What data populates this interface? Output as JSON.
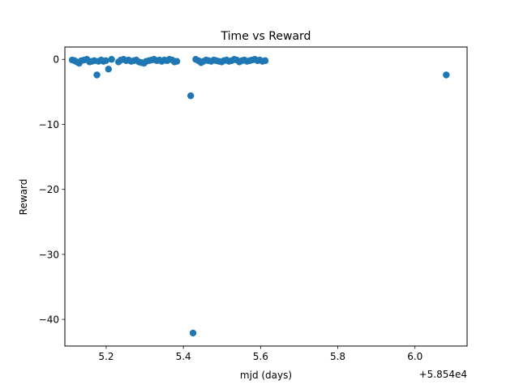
{
  "chart_data": {
    "type": "scatter",
    "title": "Time vs Reward",
    "xlabel": "mjd (days)",
    "ylabel": "Reward",
    "x_offset_label": "+5.854e4",
    "xlim": [
      5.093,
      6.135
    ],
    "ylim": [
      -44.1,
      1.9
    ],
    "x_ticks": [
      {
        "value": 5.2,
        "label": "5.2"
      },
      {
        "value": 5.4,
        "label": "5.4"
      },
      {
        "value": 5.6,
        "label": "5.6"
      },
      {
        "value": 5.8,
        "label": "5.8"
      },
      {
        "value": 6.0,
        "label": "6.0"
      }
    ],
    "y_ticks": [
      {
        "value": 0,
        "label": "0"
      },
      {
        "value": -10,
        "label": "−10"
      },
      {
        "value": -20,
        "label": "−20"
      },
      {
        "value": -30,
        "label": "−30"
      },
      {
        "value": -40,
        "label": "−40"
      }
    ],
    "grid": false,
    "marker_color": "#1f77b4",
    "series": [
      {
        "x": [
          5.112,
          5.118,
          5.124,
          5.13,
          5.136,
          5.143,
          5.15,
          5.157,
          5.163,
          5.169,
          5.176,
          5.18,
          5.187,
          5.193,
          5.199,
          5.206,
          5.214,
          5.232,
          5.238,
          5.245,
          5.252,
          5.258,
          5.265,
          5.272,
          5.278,
          5.285,
          5.291,
          5.298,
          5.304,
          5.311,
          5.318,
          5.324,
          5.331,
          5.338,
          5.344,
          5.351,
          5.358,
          5.364,
          5.371,
          5.377,
          5.383,
          5.419,
          5.425,
          5.432,
          5.439,
          5.446,
          5.452,
          5.459,
          5.465,
          5.472,
          5.479,
          5.485,
          5.492,
          5.499,
          5.505,
          5.512,
          5.518,
          5.525,
          5.532,
          5.538,
          5.545,
          5.552,
          5.558,
          5.565,
          5.572,
          5.578,
          5.585,
          5.592,
          5.598,
          5.605,
          5.612,
          6.081
        ],
        "y": [
          -0.1,
          -0.2,
          -0.4,
          -0.6,
          -0.2,
          -0.1,
          0.0,
          -0.4,
          -0.3,
          -0.2,
          -2.4,
          -0.3,
          -0.1,
          -0.3,
          -0.2,
          -1.5,
          0.0,
          -0.4,
          -0.1,
          0.0,
          -0.2,
          -0.1,
          -0.3,
          -0.2,
          -0.1,
          -0.4,
          -0.5,
          -0.6,
          -0.3,
          -0.2,
          -0.1,
          0.0,
          -0.2,
          -0.1,
          -0.3,
          -0.1,
          -0.2,
          0.0,
          -0.1,
          -0.4,
          -0.3,
          -5.6,
          -42.1,
          0.0,
          -0.2,
          -0.5,
          -0.3,
          -0.1,
          -0.2,
          -0.3,
          -0.1,
          -0.2,
          -0.3,
          -0.4,
          -0.2,
          -0.1,
          -0.3,
          -0.2,
          0.0,
          -0.1,
          -0.4,
          -0.2,
          -0.1,
          -0.3,
          -0.2,
          -0.1,
          0.0,
          -0.2,
          -0.1,
          -0.3,
          -0.2,
          -2.4
        ]
      }
    ]
  }
}
